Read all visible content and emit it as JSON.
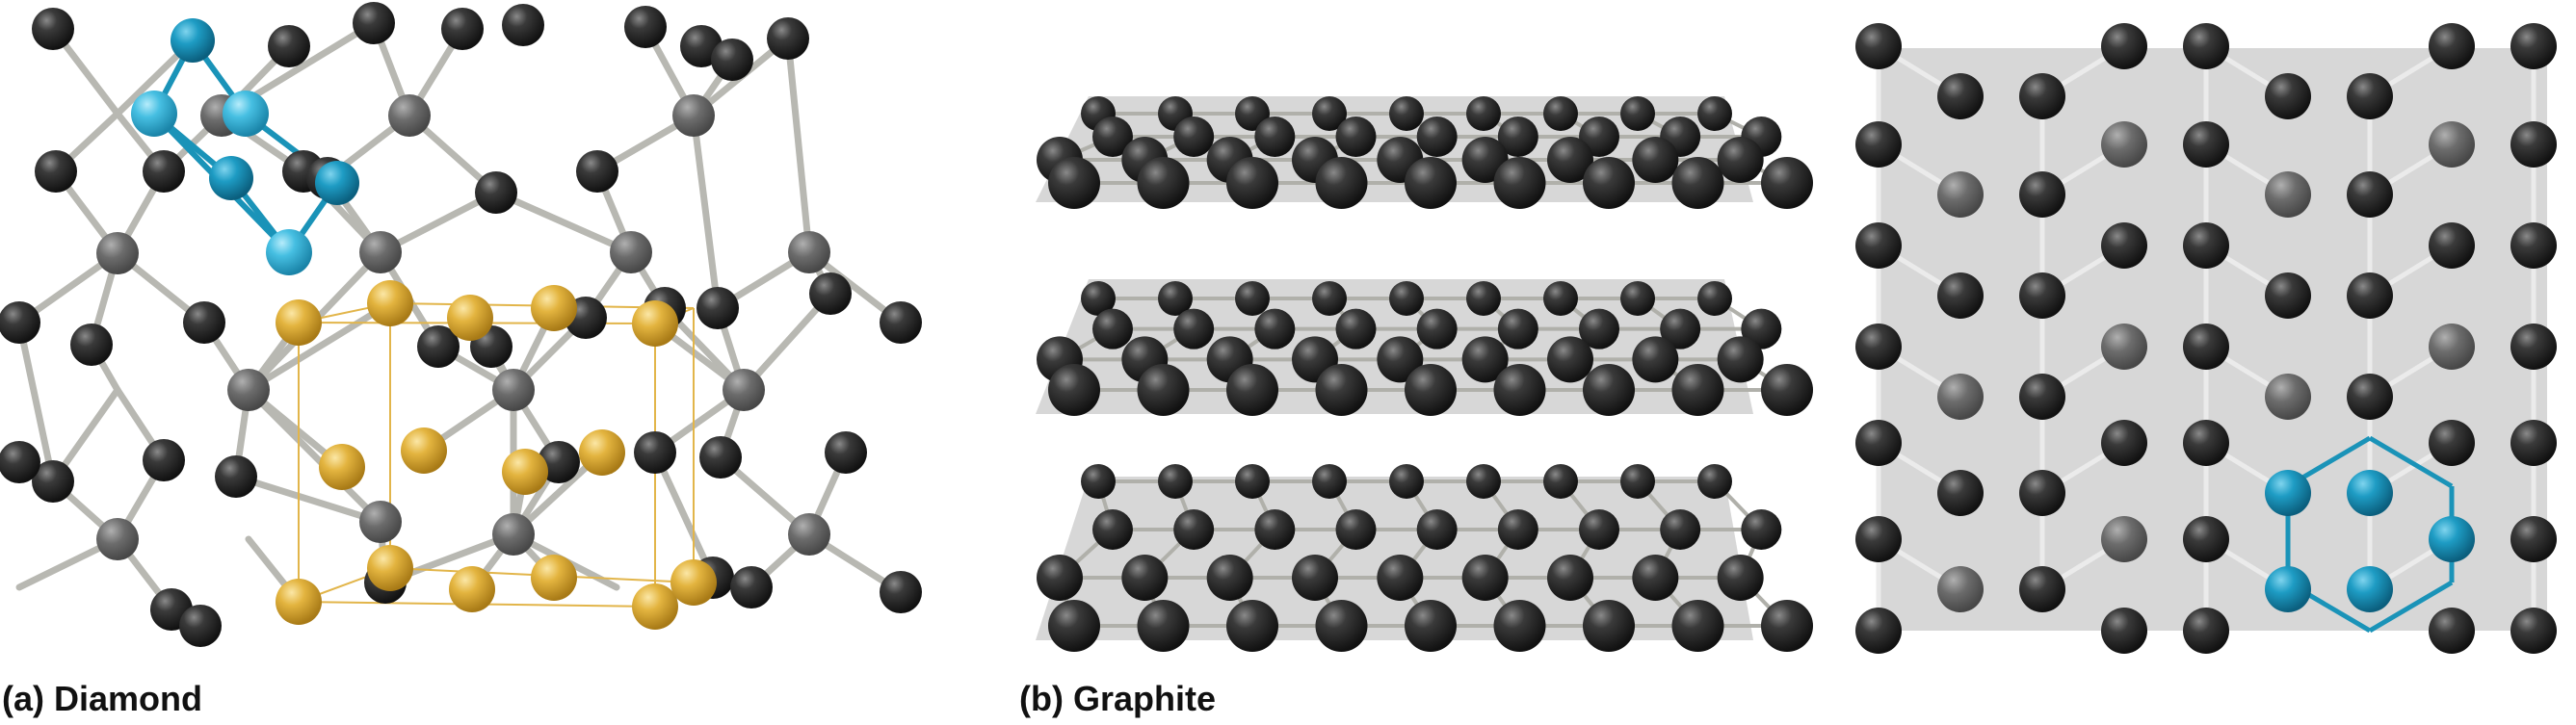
{
  "captions": {
    "diamond": "(a) Diamond",
    "graphite": "(b) Graphite"
  },
  "colors": {
    "carbon": "#2a2a2a",
    "carbon_rear": "#6a6a6a",
    "highlight": "#1a93b8",
    "unit_cell": "#e0b23c",
    "bond": "#b5b5b0",
    "plane": "#c9c9c9"
  },
  "panels": [
    {
      "id": "diamond-structure",
      "structure": "tetrahedral 3D carbon lattice",
      "highlight": "blue six-membered ring (chair)",
      "unit_cell": "gold cubic unit cell"
    },
    {
      "id": "graphite-layers",
      "structure": "three stacked hexagonal carbon layers"
    },
    {
      "id": "graphite-sheet-top-view",
      "structure": "single hexagonal graphite sheet",
      "highlight": "blue hexagonal ring"
    }
  ]
}
